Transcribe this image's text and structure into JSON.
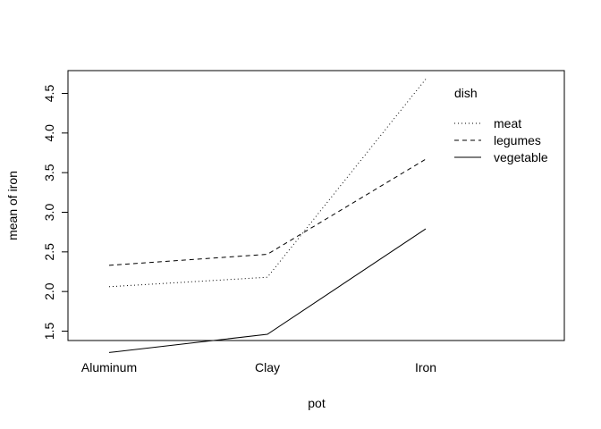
{
  "chart_data": {
    "type": "line",
    "xlabel": "pot",
    "ylabel": "mean of  iron",
    "categories": [
      "Aluminum",
      "Clay",
      "Iron"
    ],
    "ylim": [
      1.2,
      4.7
    ],
    "yticks": [
      1.5,
      2.0,
      2.5,
      3.0,
      3.5,
      4.0,
      4.5
    ],
    "ytick_labels": [
      "1.5",
      "2.0",
      "2.5",
      "3.0",
      "3.5",
      "4.0",
      "4.5"
    ],
    "grid": false,
    "legend": {
      "title": "dish",
      "placement": "top-right"
    },
    "series": [
      {
        "name": "meat",
        "values": [
          2.06,
          2.18,
          4.68
        ],
        "linestyle": "dotted",
        "color": "#000000"
      },
      {
        "name": "legumes",
        "values": [
          2.33,
          2.47,
          3.67
        ],
        "linestyle": "dashed",
        "color": "#000000"
      },
      {
        "name": "vegetable",
        "values": [
          1.23,
          1.46,
          2.79
        ],
        "linestyle": "solid",
        "color": "#000000"
      }
    ]
  }
}
